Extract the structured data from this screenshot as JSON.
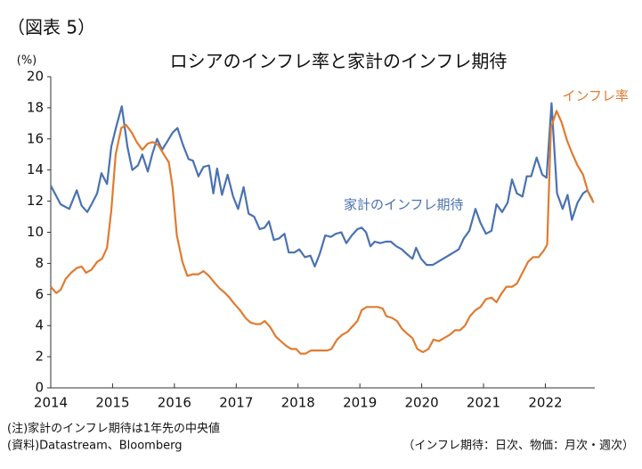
{
  "chart_data": {
    "type": "line",
    "figure_label": "（図表 5）",
    "title": "ロシアのインフレ率と家計のインフレ期待",
    "y_unit": "(%)",
    "note": "(注)家計のインフレ期待は1年先の中央値",
    "source": "(資料)Datastream、Bloomberg",
    "frequency_note": "（インフレ期待：日次、物価：月次・週次）",
    "xlim": [
      2014,
      2022.8
    ],
    "xticks": [
      2014,
      2015,
      2016,
      2017,
      2018,
      2019,
      2020,
      2021,
      2022
    ],
    "ylim": [
      0,
      20
    ],
    "yticks": [
      0,
      2,
      4,
      6,
      8,
      10,
      12,
      14,
      16,
      18,
      20
    ],
    "series": [
      {
        "name": "家計のインフレ期待",
        "color": "#4a72b0",
        "x": [
          2014.0,
          2014.16,
          2014.3,
          2014.42,
          2014.5,
          2014.59,
          2014.66,
          2014.75,
          2014.82,
          2014.91,
          2014.98,
          2015.06,
          2015.15,
          2015.24,
          2015.32,
          2015.41,
          2015.48,
          2015.57,
          2015.64,
          2015.72,
          2015.8,
          2015.88,
          2015.97,
          2016.05,
          2016.14,
          2016.23,
          2016.3,
          2016.39,
          2016.47,
          2016.56,
          2016.63,
          2016.69,
          2016.77,
          2016.86,
          2016.95,
          2017.03,
          2017.12,
          2017.2,
          2017.29,
          2017.38,
          2017.46,
          2017.53,
          2017.61,
          2017.69,
          2017.78,
          2017.85,
          2017.94,
          2018.02,
          2018.11,
          2018.2,
          2018.27,
          2018.35,
          2018.44,
          2018.53,
          2018.61,
          2018.7,
          2018.78,
          2018.87,
          2018.96,
          2019.03,
          2019.1,
          2019.17,
          2019.24,
          2019.33,
          2019.42,
          2019.5,
          2019.59,
          2019.68,
          2019.76,
          2019.85,
          2019.91,
          2019.99,
          2020.08,
          2020.18,
          2020.6,
          2020.68,
          2020.77,
          2020.87,
          2020.95,
          2021.04,
          2021.13,
          2021.21,
          2021.3,
          2021.39,
          2021.46,
          2021.54,
          2021.63,
          2021.7,
          2021.77,
          2021.86,
          2021.95,
          2022.02,
          2022.1,
          2022.19,
          2022.28,
          2022.36,
          2022.43,
          2022.52,
          2022.61,
          2022.68,
          2022.76
        ],
        "values": [
          13.0,
          11.8,
          11.5,
          12.7,
          11.7,
          11.3,
          11.8,
          12.5,
          13.8,
          13.1,
          15.5,
          16.8,
          18.1,
          15.5,
          14.0,
          14.3,
          15.0,
          13.9,
          15.0,
          16.0,
          15.3,
          15.8,
          16.4,
          16.7,
          15.6,
          14.7,
          14.6,
          13.6,
          14.2,
          14.3,
          12.5,
          14.1,
          12.4,
          13.7,
          12.3,
          11.5,
          12.9,
          11.2,
          11.0,
          10.2,
          10.3,
          10.7,
          9.5,
          9.6,
          9.9,
          8.7,
          8.7,
          8.9,
          8.4,
          8.5,
          7.8,
          8.6,
          9.8,
          9.7,
          9.9,
          10.0,
          9.3,
          9.8,
          10.2,
          10.3,
          10.0,
          9.1,
          9.4,
          9.3,
          9.4,
          9.4,
          9.1,
          8.9,
          8.6,
          8.3,
          9.0,
          8.3,
          7.9,
          7.9,
          8.9,
          9.6,
          10.1,
          11.5,
          10.6,
          9.9,
          10.1,
          11.8,
          11.3,
          11.9,
          13.4,
          12.5,
          12.3,
          13.6,
          13.6,
          14.8,
          13.7,
          13.5,
          18.3,
          12.5,
          11.5,
          12.4,
          10.8,
          11.9,
          12.5,
          12.7,
          12.1
        ]
      },
      {
        "name": "インフレ率",
        "color": "#e07b30",
        "x": [
          2014.0,
          2014.09,
          2014.16,
          2014.24,
          2014.33,
          2014.42,
          2014.5,
          2014.57,
          2014.66,
          2014.75,
          2014.83,
          2014.91,
          2014.98,
          2015.05,
          2015.14,
          2015.22,
          2015.31,
          2015.39,
          2015.48,
          2015.57,
          2015.65,
          2015.74,
          2015.83,
          2015.91,
          2015.97,
          2016.04,
          2016.13,
          2016.21,
          2016.3,
          2016.39,
          2016.47,
          2016.56,
          2016.64,
          2016.73,
          2016.82,
          2016.89,
          2016.97,
          2017.06,
          2017.15,
          2017.23,
          2017.32,
          2017.39,
          2017.46,
          2017.55,
          2017.64,
          2017.72,
          2017.81,
          2017.89,
          2017.97,
          2018.04,
          2018.12,
          2018.21,
          2018.3,
          2018.38,
          2018.47,
          2018.54,
          2018.63,
          2018.71,
          2018.8,
          2018.87,
          2018.96,
          2019.03,
          2019.11,
          2019.2,
          2019.29,
          2019.37,
          2019.43,
          2019.52,
          2019.6,
          2019.68,
          2019.76,
          2019.85,
          2019.93,
          2020.02,
          2020.11,
          2020.19,
          2020.28,
          2020.36,
          2020.45,
          2020.54,
          2020.62,
          2020.7,
          2020.78,
          2020.87,
          2020.95,
          2021.04,
          2021.13,
          2021.21,
          2021.28,
          2021.37,
          2021.46,
          2021.54,
          2021.63,
          2021.72,
          2021.8,
          2021.89,
          2021.97,
          2022.03,
          2022.09,
          2022.18,
          2022.26,
          2022.35,
          2022.43,
          2022.52,
          2022.61,
          2022.69,
          2022.78
        ],
        "values": [
          6.5,
          6.1,
          6.3,
          7.0,
          7.4,
          7.7,
          7.8,
          7.4,
          7.6,
          8.1,
          8.3,
          9.0,
          11.4,
          15.0,
          16.7,
          16.9,
          16.4,
          15.8,
          15.3,
          15.7,
          15.8,
          15.6,
          15.0,
          14.5,
          12.9,
          9.8,
          8.1,
          7.2,
          7.3,
          7.3,
          7.5,
          7.2,
          6.8,
          6.4,
          6.1,
          5.8,
          5.4,
          5.0,
          4.5,
          4.2,
          4.1,
          4.1,
          4.3,
          3.9,
          3.3,
          3.0,
          2.7,
          2.5,
          2.5,
          2.2,
          2.2,
          2.4,
          2.4,
          2.4,
          2.4,
          2.5,
          3.1,
          3.4,
          3.6,
          3.9,
          4.3,
          5.0,
          5.2,
          5.2,
          5.2,
          5.1,
          4.6,
          4.5,
          4.3,
          3.8,
          3.5,
          3.2,
          2.5,
          2.3,
          2.5,
          3.1,
          3.0,
          3.2,
          3.4,
          3.7,
          3.7,
          4.0,
          4.6,
          5.0,
          5.2,
          5.7,
          5.8,
          5.5,
          6.0,
          6.5,
          6.5,
          6.7,
          7.4,
          8.1,
          8.4,
          8.4,
          8.8,
          9.2,
          16.7,
          17.8,
          17.1,
          15.9,
          15.1,
          14.3,
          13.7,
          12.6,
          11.9
        ]
      }
    ]
  }
}
